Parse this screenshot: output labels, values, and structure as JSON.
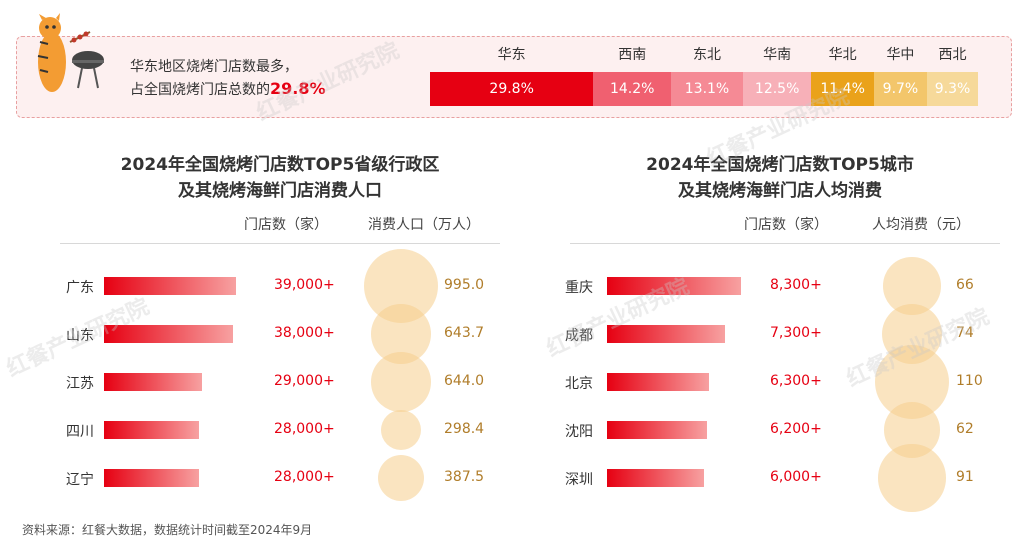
{
  "banner": {
    "line1": "华东地区烧烤门店数最多，",
    "line2_prefix": "占全国烧烤门店总数的",
    "line2_pct": "29.8%"
  },
  "region_chart": {
    "type": "bar",
    "categories": [
      "华东",
      "西南",
      "东北",
      "华南",
      "华北",
      "华中",
      "西北"
    ],
    "values": [
      29.8,
      14.2,
      13.1,
      12.5,
      11.4,
      9.7,
      9.3
    ],
    "value_labels": [
      "29.8%",
      "14.2%",
      "13.1%",
      "12.5%",
      "11.4%",
      "9.7%",
      "9.3%"
    ],
    "colors": [
      "#e60012",
      "#f06070",
      "#f58a95",
      "#f7b0b8",
      "#eaa21a",
      "#f3c66b",
      "#f6d99a"
    ]
  },
  "chart_data": [
    {
      "type": "bar",
      "title": "2024年全国烧烤门店数TOP5省级行政区\n及其烧烤海鲜门店消费人口",
      "title_line1": "2024年全国烧烤门店数TOP5省级行政区",
      "title_line2": "及其烧烤海鲜门店消费人口",
      "col1_header": "门店数（家）",
      "col2_header": "消费人口（万人）",
      "categories": [
        "广东",
        "山东",
        "江苏",
        "四川",
        "辽宁"
      ],
      "series": [
        {
          "name": "门店数（家）",
          "values": [
            39000,
            38000,
            29000,
            28000,
            28000
          ],
          "labels": [
            "39,000+",
            "38,000+",
            "29,000+",
            "28,000+",
            "28,000+"
          ]
        },
        {
          "name": "消费人口（万人）",
          "values": [
            995.0,
            643.7,
            644.0,
            298.4,
            387.5
          ],
          "labels": [
            "995.0",
            "643.7",
            "644.0",
            "298.4",
            "387.5"
          ]
        }
      ]
    },
    {
      "type": "bar",
      "title": "2024年全国烧烤门店数TOP5城市\n及其烧烤海鲜门店人均消费",
      "title_line1": "2024年全国烧烤门店数TOP5城市",
      "title_line2": "及其烧烤海鲜门店人均消费",
      "col1_header": "门店数（家）",
      "col2_header": "人均消费（元）",
      "categories": [
        "重庆",
        "成都",
        "北京",
        "沈阳",
        "深圳"
      ],
      "series": [
        {
          "name": "门店数（家）",
          "values": [
            8300,
            7300,
            6300,
            6200,
            6000
          ],
          "labels": [
            "8,300+",
            "7,300+",
            "6,300+",
            "6,200+",
            "6,000+"
          ]
        },
        {
          "name": "人均消费（元）",
          "values": [
            66,
            74,
            110,
            62,
            91
          ],
          "labels": [
            "66",
            "74",
            "110",
            "62",
            "91"
          ]
        }
      ]
    }
  ],
  "source": "资料来源：红餐大数据，数据统计时间截至2024年9月",
  "watermark": "红餐产业研究院"
}
